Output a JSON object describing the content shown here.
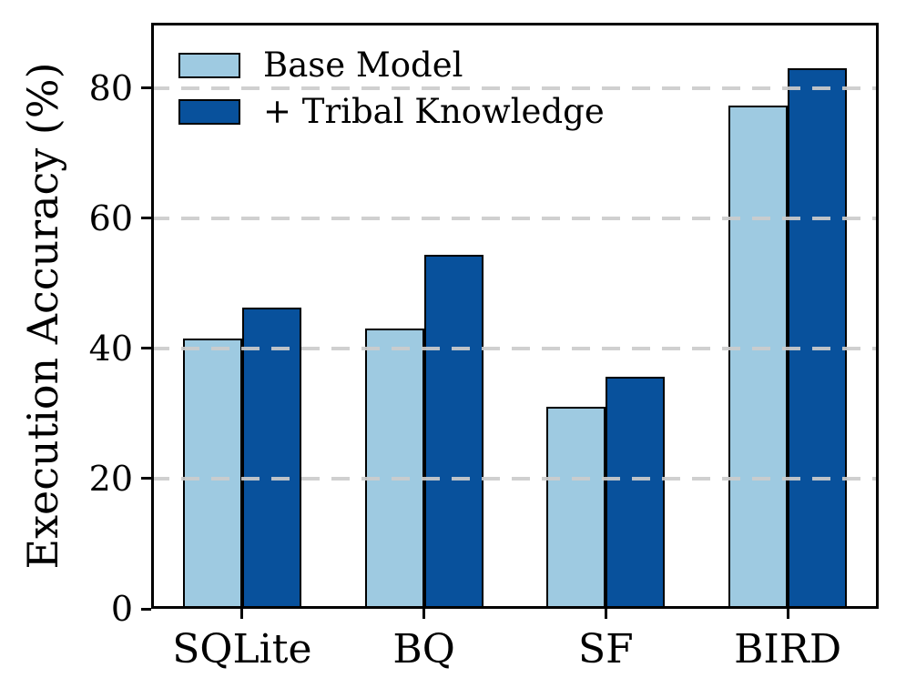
{
  "chart_data": {
    "type": "bar",
    "title": "",
    "xlabel": "",
    "ylabel": "Execution Accuracy (%)",
    "categories": [
      "SQLite",
      "BQ",
      "SF",
      "BIRD"
    ],
    "series": [
      {
        "name": "Base Model",
        "color": "#9ecae1",
        "values": [
          41.5,
          43.0,
          31.0,
          77.3
        ]
      },
      {
        "name": "+ Tribal Knowledge",
        "color": "#08519c",
        "values": [
          46.3,
          54.3,
          35.6,
          83.0
        ]
      }
    ],
    "ylim": [
      0,
      90
    ],
    "yticks": [
      0,
      20,
      40,
      60,
      80
    ],
    "grid": {
      "axis": "y",
      "style": "dashed",
      "color": "#cccccc",
      "drawn_above_bars": true
    },
    "legend": {
      "position": "upper-left",
      "frame": false
    },
    "bar_edge_color": "#000000",
    "background_color": "#ffffff"
  }
}
